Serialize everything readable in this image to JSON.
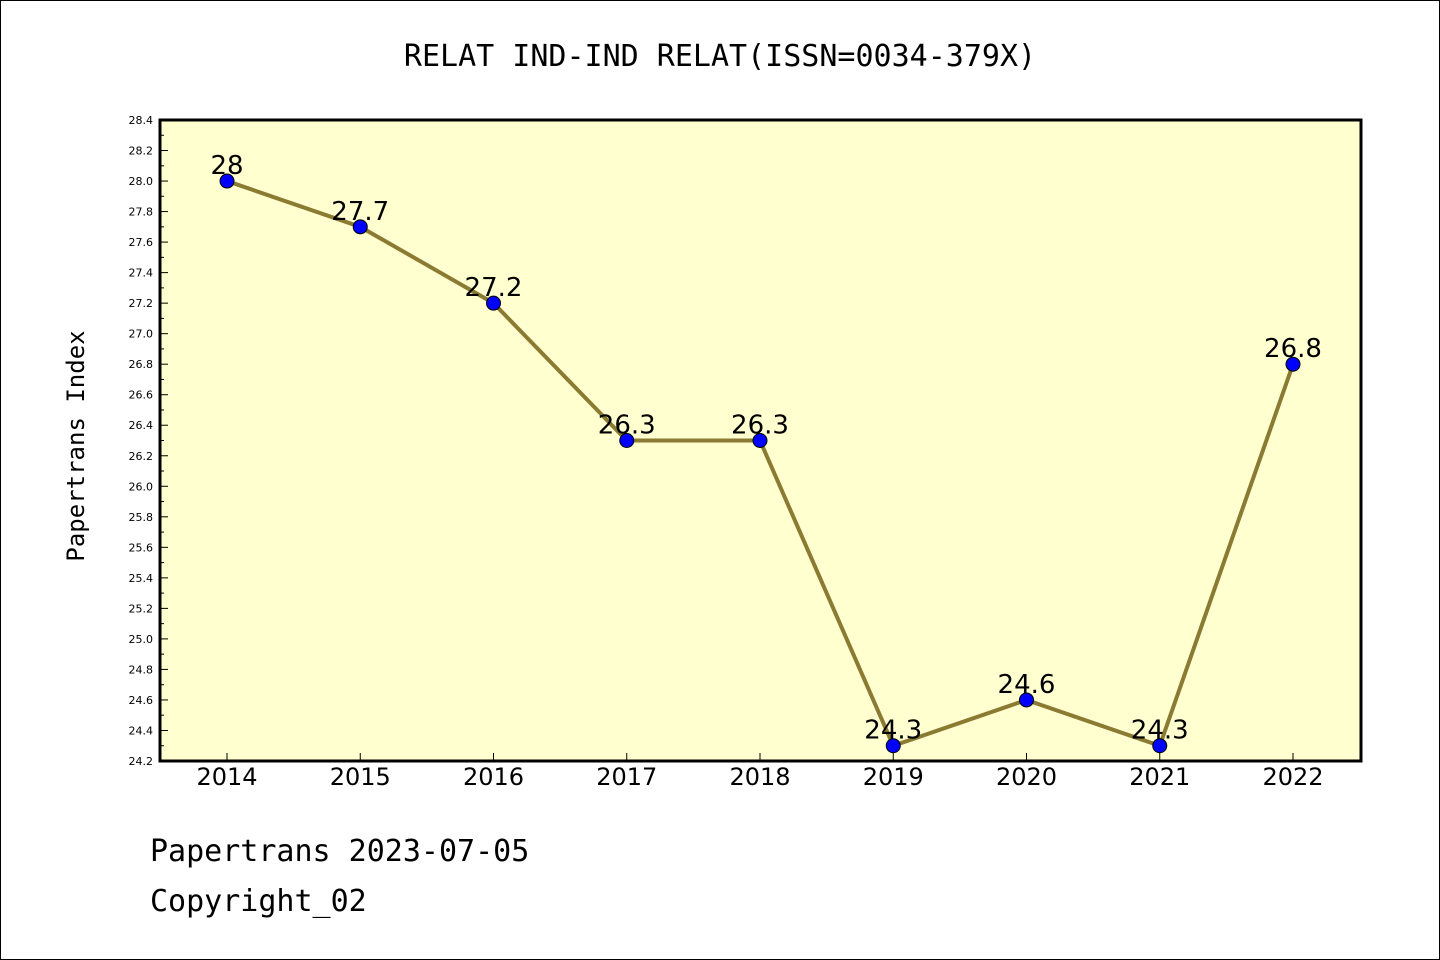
{
  "chart_data": {
    "type": "line",
    "title": "RELAT IND-IND RELAT(ISSN=0034-379X)",
    "ylabel": "Papertrans Index",
    "xlabel": "",
    "categories": [
      "2014",
      "2015",
      "2016",
      "2017",
      "2018",
      "2019",
      "2020",
      "2021",
      "2022"
    ],
    "values": [
      28,
      27.7,
      27.2,
      26.3,
      26.3,
      24.3,
      24.6,
      24.3,
      26.8
    ],
    "data_labels": [
      "28",
      "27.7",
      "27.2",
      "26.3",
      "26.3",
      "24.3",
      "24.6",
      "24.3",
      "26.8"
    ],
    "ylim": [
      24.2,
      28.4
    ],
    "yticks": [
      "24.2",
      "24.4",
      "24.6",
      "24.8",
      "25.0",
      "25.2",
      "25.4",
      "25.6",
      "25.8",
      "26.0",
      "26.2",
      "26.4",
      "26.6",
      "26.8",
      "27.0",
      "27.2",
      "27.4",
      "27.6",
      "27.8",
      "28.0",
      "28.2",
      "28.4"
    ],
    "grid": false,
    "colors": {
      "plot_background": "#ffffd0",
      "line": "#8b7a32",
      "marker": "#0000ff"
    }
  },
  "footer": {
    "line1": "Papertrans 2023-07-05",
    "line2": "Copyright_02"
  }
}
